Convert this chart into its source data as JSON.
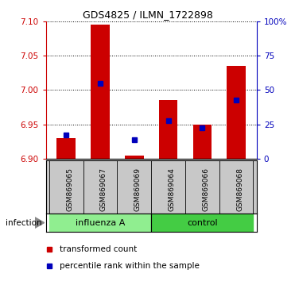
{
  "title": "GDS4825 / ILMN_1722898",
  "samples": [
    "GSM869065",
    "GSM869067",
    "GSM869069",
    "GSM869064",
    "GSM869066",
    "GSM869068"
  ],
  "red_values": [
    6.93,
    7.095,
    6.905,
    6.985,
    6.95,
    7.035
  ],
  "blue_values": [
    6.935,
    7.01,
    6.928,
    6.955,
    6.945,
    6.985
  ],
  "ylim_left": [
    6.9,
    7.1
  ],
  "yticks_left": [
    6.9,
    6.95,
    7.0,
    7.05,
    7.1
  ],
  "yticks_right": [
    0,
    25,
    50,
    75,
    100
  ],
  "bar_bottom": 6.9,
  "bar_color": "#cc0000",
  "blue_color": "#0000bb",
  "legend_red_label": "transformed count",
  "legend_blue_label": "percentile rank within the sample",
  "infection_label": "infection",
  "sample_bg": "#c8c8c8",
  "group_influenza_color": "#90ee90",
  "group_control_color": "#44cc44",
  "plot_bg": "#ffffff",
  "bar_width": 0.55
}
